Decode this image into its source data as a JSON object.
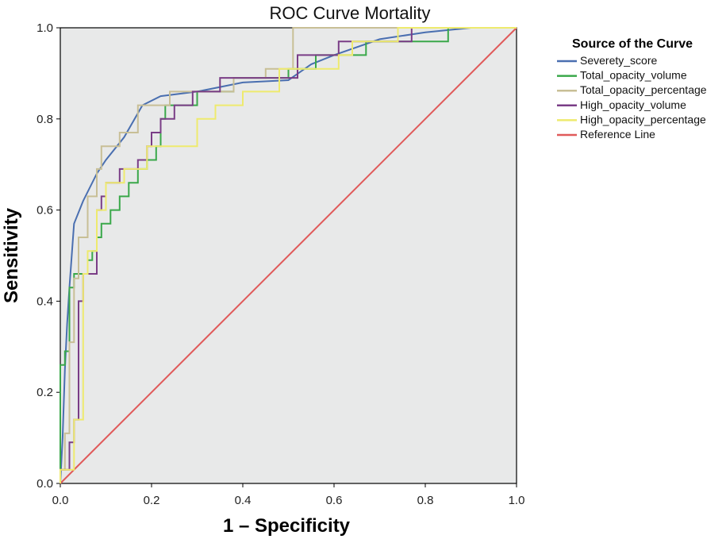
{
  "chart_data": {
    "type": "line",
    "title": "ROC Curve Mortality",
    "xlabel": "1 – Specificity",
    "ylabel": "Sensitivity",
    "xlim": [
      0,
      1
    ],
    "ylim": [
      0,
      1
    ],
    "x_ticks": [
      "0.0",
      "0.2",
      "0.4",
      "0.6",
      "0.8",
      "1.0"
    ],
    "y_ticks": [
      "0.0",
      "0.2",
      "0.4",
      "0.6",
      "0.8",
      "1.0"
    ],
    "legend_title": "Source of the Curve",
    "legend_position": "right",
    "series": [
      {
        "name": "Severety_score",
        "color": "#4a6fb0",
        "step": false,
        "points": [
          [
            0,
            0
          ],
          [
            0.005,
            0.1
          ],
          [
            0.01,
            0.25
          ],
          [
            0.015,
            0.35
          ],
          [
            0.02,
            0.43
          ],
          [
            0.025,
            0.5
          ],
          [
            0.03,
            0.57
          ],
          [
            0.05,
            0.62
          ],
          [
            0.08,
            0.68
          ],
          [
            0.1,
            0.71
          ],
          [
            0.14,
            0.76
          ],
          [
            0.18,
            0.83
          ],
          [
            0.22,
            0.85
          ],
          [
            0.3,
            0.86
          ],
          [
            0.4,
            0.88
          ],
          [
            0.5,
            0.885
          ],
          [
            0.55,
            0.92
          ],
          [
            0.6,
            0.94
          ],
          [
            0.7,
            0.975
          ],
          [
            0.8,
            0.99
          ],
          [
            0.9,
            1.0
          ],
          [
            1.0,
            1.0
          ]
        ]
      },
      {
        "name": "Total_opacity_volume",
        "color": "#3aa84a",
        "step": true,
        "points": [
          [
            0,
            0
          ],
          [
            0,
            0.26
          ],
          [
            0.01,
            0.26
          ],
          [
            0.01,
            0.29
          ],
          [
            0.02,
            0.29
          ],
          [
            0.02,
            0.43
          ],
          [
            0.03,
            0.43
          ],
          [
            0.03,
            0.46
          ],
          [
            0.06,
            0.46
          ],
          [
            0.06,
            0.49
          ],
          [
            0.07,
            0.49
          ],
          [
            0.07,
            0.51
          ],
          [
            0.08,
            0.51
          ],
          [
            0.08,
            0.54
          ],
          [
            0.09,
            0.54
          ],
          [
            0.09,
            0.57
          ],
          [
            0.11,
            0.57
          ],
          [
            0.11,
            0.6
          ],
          [
            0.13,
            0.6
          ],
          [
            0.13,
            0.63
          ],
          [
            0.15,
            0.63
          ],
          [
            0.15,
            0.66
          ],
          [
            0.17,
            0.66
          ],
          [
            0.17,
            0.69
          ],
          [
            0.19,
            0.69
          ],
          [
            0.19,
            0.71
          ],
          [
            0.21,
            0.71
          ],
          [
            0.21,
            0.74
          ],
          [
            0.22,
            0.74
          ],
          [
            0.22,
            0.8
          ],
          [
            0.23,
            0.8
          ],
          [
            0.23,
            0.83
          ],
          [
            0.3,
            0.83
          ],
          [
            0.3,
            0.86
          ],
          [
            0.38,
            0.86
          ],
          [
            0.38,
            0.89
          ],
          [
            0.5,
            0.89
          ],
          [
            0.5,
            0.91
          ],
          [
            0.56,
            0.91
          ],
          [
            0.56,
            0.94
          ],
          [
            0.67,
            0.94
          ],
          [
            0.67,
            0.97
          ],
          [
            0.85,
            0.97
          ],
          [
            0.85,
            1.0
          ],
          [
            1.0,
            1.0
          ]
        ]
      },
      {
        "name": "Total_opacity_percentage",
        "color": "#c8bf96",
        "step": true,
        "points": [
          [
            0,
            0
          ],
          [
            0,
            0.03
          ],
          [
            0.01,
            0.03
          ],
          [
            0.01,
            0.11
          ],
          [
            0.02,
            0.11
          ],
          [
            0.02,
            0.31
          ],
          [
            0.03,
            0.31
          ],
          [
            0.03,
            0.45
          ],
          [
            0.04,
            0.45
          ],
          [
            0.04,
            0.54
          ],
          [
            0.06,
            0.54
          ],
          [
            0.06,
            0.63
          ],
          [
            0.08,
            0.63
          ],
          [
            0.08,
            0.69
          ],
          [
            0.09,
            0.69
          ],
          [
            0.09,
            0.74
          ],
          [
            0.13,
            0.74
          ],
          [
            0.13,
            0.77
          ],
          [
            0.17,
            0.77
          ],
          [
            0.17,
            0.83
          ],
          [
            0.24,
            0.83
          ],
          [
            0.24,
            0.86
          ],
          [
            0.38,
            0.86
          ],
          [
            0.38,
            0.89
          ],
          [
            0.45,
            0.89
          ],
          [
            0.45,
            0.91
          ],
          [
            0.51,
            0.91
          ],
          [
            0.51,
            1.0
          ],
          [
            1.0,
            1.0
          ]
        ]
      },
      {
        "name": "High_opacity_volume",
        "color": "#7a3d86",
        "step": true,
        "points": [
          [
            0,
            0
          ],
          [
            0,
            0.03
          ],
          [
            0.02,
            0.03
          ],
          [
            0.02,
            0.09
          ],
          [
            0.03,
            0.09
          ],
          [
            0.03,
            0.14
          ],
          [
            0.04,
            0.14
          ],
          [
            0.04,
            0.4
          ],
          [
            0.05,
            0.4
          ],
          [
            0.05,
            0.46
          ],
          [
            0.08,
            0.46
          ],
          [
            0.08,
            0.6
          ],
          [
            0.09,
            0.6
          ],
          [
            0.09,
            0.63
          ],
          [
            0.1,
            0.63
          ],
          [
            0.1,
            0.66
          ],
          [
            0.13,
            0.66
          ],
          [
            0.13,
            0.69
          ],
          [
            0.17,
            0.69
          ],
          [
            0.17,
            0.71
          ],
          [
            0.19,
            0.71
          ],
          [
            0.19,
            0.74
          ],
          [
            0.2,
            0.74
          ],
          [
            0.2,
            0.77
          ],
          [
            0.22,
            0.77
          ],
          [
            0.22,
            0.8
          ],
          [
            0.25,
            0.8
          ],
          [
            0.25,
            0.83
          ],
          [
            0.29,
            0.83
          ],
          [
            0.29,
            0.86
          ],
          [
            0.35,
            0.86
          ],
          [
            0.35,
            0.89
          ],
          [
            0.52,
            0.89
          ],
          [
            0.52,
            0.94
          ],
          [
            0.61,
            0.94
          ],
          [
            0.61,
            0.97
          ],
          [
            0.77,
            0.97
          ],
          [
            0.77,
            1.0
          ],
          [
            1.0,
            1.0
          ]
        ]
      },
      {
        "name": "High_opacity_percentage",
        "color": "#eeea6e",
        "step": true,
        "points": [
          [
            0,
            0
          ],
          [
            0,
            0.03
          ],
          [
            0.03,
            0.03
          ],
          [
            0.03,
            0.14
          ],
          [
            0.05,
            0.14
          ],
          [
            0.05,
            0.46
          ],
          [
            0.06,
            0.46
          ],
          [
            0.06,
            0.51
          ],
          [
            0.08,
            0.51
          ],
          [
            0.08,
            0.6
          ],
          [
            0.1,
            0.6
          ],
          [
            0.1,
            0.66
          ],
          [
            0.14,
            0.66
          ],
          [
            0.14,
            0.69
          ],
          [
            0.19,
            0.69
          ],
          [
            0.19,
            0.74
          ],
          [
            0.3,
            0.74
          ],
          [
            0.3,
            0.8
          ],
          [
            0.34,
            0.8
          ],
          [
            0.34,
            0.83
          ],
          [
            0.4,
            0.83
          ],
          [
            0.4,
            0.86
          ],
          [
            0.48,
            0.86
          ],
          [
            0.48,
            0.91
          ],
          [
            0.61,
            0.91
          ],
          [
            0.61,
            0.94
          ],
          [
            0.64,
            0.94
          ],
          [
            0.64,
            0.97
          ],
          [
            0.74,
            0.97
          ],
          [
            0.74,
            1.0
          ],
          [
            1.0,
            1.0
          ]
        ]
      },
      {
        "name": "Reference Line",
        "color": "#e05a5a",
        "step": false,
        "points": [
          [
            0,
            0
          ],
          [
            1,
            1
          ]
        ]
      }
    ]
  }
}
